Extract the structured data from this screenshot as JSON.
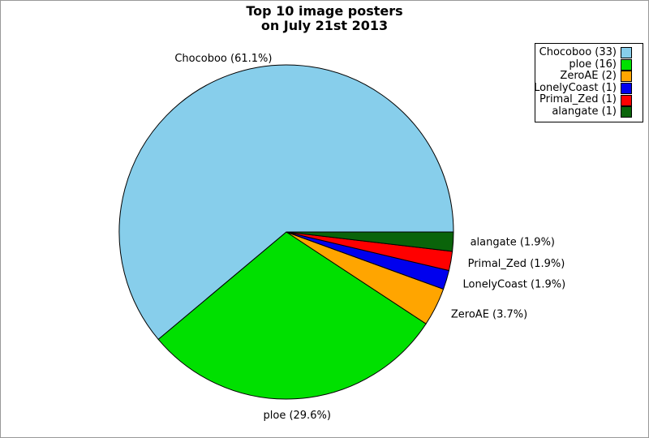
{
  "canvas": {
    "background": "#FFFFFF",
    "border_color": "#999999"
  },
  "chart_data": {
    "type": "pie",
    "title": "Top 10 image posters",
    "subtitle": "on July 21st 2013",
    "total_count": 54,
    "start_angle_deg": 0,
    "direction": "counterclockwise",
    "stroke_color": "#000000",
    "label_color": "#000000",
    "legend_position": "top-right",
    "slices": [
      {
        "name": "Chocoboo",
        "count": 33,
        "pct": 61.1,
        "label": "Chocoboo (61.1%)",
        "legend_label": "Chocoboo (33)",
        "color": "#87CEEB"
      },
      {
        "name": "ploe",
        "count": 16,
        "pct": 29.6,
        "label": "ploe (29.6%)",
        "legend_label": "ploe (16)",
        "color": "#00E000"
      },
      {
        "name": "ZeroAE",
        "count": 2,
        "pct": 3.7,
        "label": "ZeroAE (3.7%)",
        "legend_label": "ZeroAE (2)",
        "color": "#FFA500"
      },
      {
        "name": "LonelyCoast",
        "count": 1,
        "pct": 1.9,
        "label": "LonelyCoast (1.9%)",
        "legend_label": "LonelyCoast (1)",
        "color": "#0000EE"
      },
      {
        "name": "Primal_Zed",
        "count": 1,
        "pct": 1.9,
        "label": "Primal_Zed (1.9%)",
        "legend_label": "Primal_Zed (1)",
        "color": "#FF0000"
      },
      {
        "name": "alangate",
        "count": 1,
        "pct": 1.9,
        "label": "alangate (1.9%)",
        "legend_label": "alangate (1)",
        "color": "#0A640A"
      }
    ]
  }
}
